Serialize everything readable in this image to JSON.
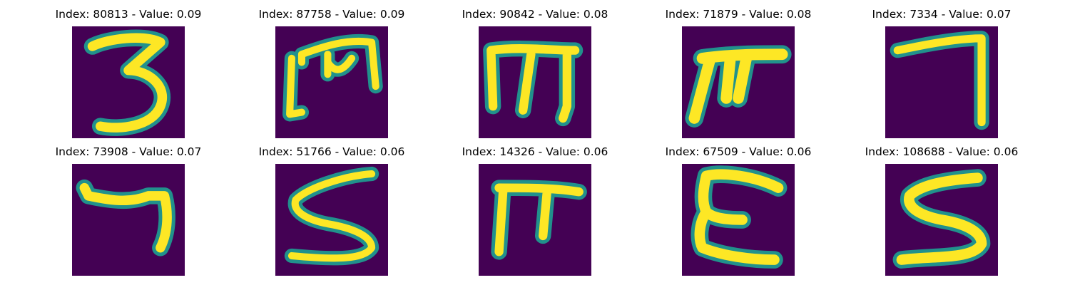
{
  "colors": {
    "background": "#440154",
    "stroke_core": "#fde725",
    "stroke_mid": "#5ec962",
    "stroke_edge": "#21918c"
  },
  "panels": [
    {
      "title": "Index: 80813 - Value: 0.09",
      "glyph": "three-icon"
    },
    {
      "title": "Index: 87758 - Value: 0.09",
      "glyph": "m-bracket-icon"
    },
    {
      "title": "Index: 90842 - Value: 0.08",
      "glyph": "m-icon"
    },
    {
      "title": "Index: 71879 - Value: 0.08",
      "glyph": "pi-icon"
    },
    {
      "title": "Index: 7334 - Value: 0.07",
      "glyph": "seven-icon"
    },
    {
      "title": "Index: 73908 - Value: 0.07",
      "glyph": "seven-hook-icon"
    },
    {
      "title": "Index: 51766 - Value: 0.06",
      "glyph": "five-s-icon"
    },
    {
      "title": "Index: 14326 - Value: 0.06",
      "glyph": "pi-narrow-icon"
    },
    {
      "title": "Index: 67509 - Value: 0.06",
      "glyph": "e-icon"
    },
    {
      "title": "Index: 108688 - Value: 0.06",
      "glyph": "s-icon"
    }
  ]
}
